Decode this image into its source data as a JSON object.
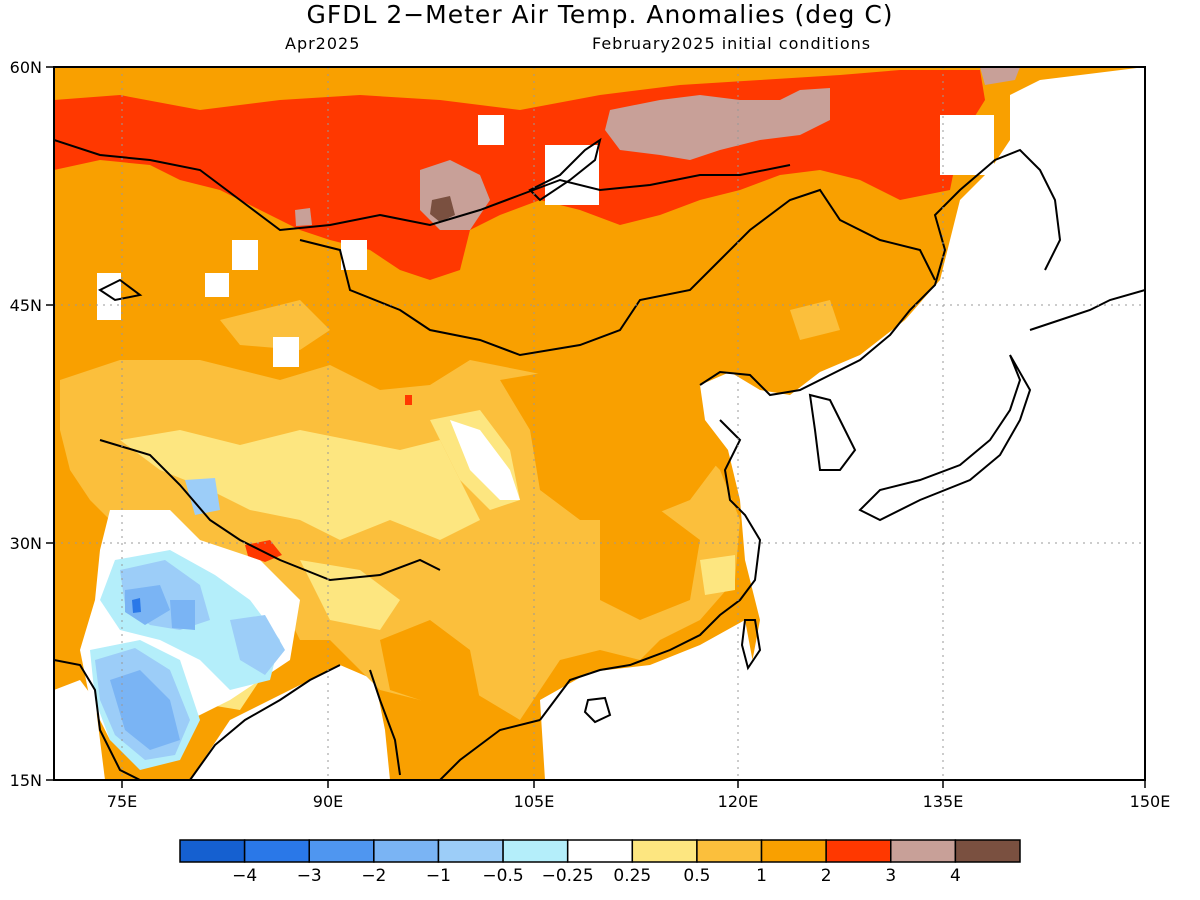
{
  "title": "GFDL 2−Meter Air Temp. Anomalies (deg C)",
  "subtitle_left": "Apr2025",
  "subtitle_right": "February2025 initial conditions",
  "map": {
    "lon_range": [
      70,
      150
    ],
    "lat_range": [
      15,
      60
    ],
    "x_ticks": [
      "75E",
      "90E",
      "105E",
      "120E",
      "135E",
      "150E"
    ],
    "y_ticks": [
      "60N",
      "45N",
      "30N",
      "15N"
    ]
  },
  "colorbar": {
    "labels": [
      "−4",
      "−3",
      "−2",
      "−1",
      "−0.5",
      "−0.25",
      "0.25",
      "0.5",
      "1",
      "2",
      "3",
      "4"
    ],
    "colors": [
      "#1560d0",
      "#2a78e8",
      "#4f96f0",
      "#7ab4f4",
      "#9ccdf8",
      "#b4eefa",
      "#ffffff",
      "#fde680",
      "#fbbf3c",
      "#f9a000",
      "#ff3800",
      "#c8a098",
      "#7a5040"
    ]
  }
}
